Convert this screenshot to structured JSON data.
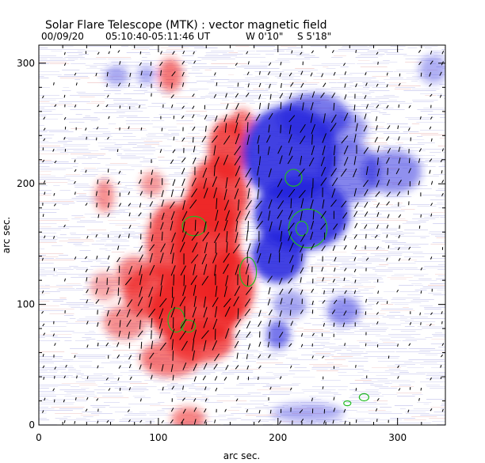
{
  "chart_data": {
    "type": "heatmap",
    "title": "Solar Flare Telescope (MTK) : vector magnetic field",
    "subtitle": {
      "date": "00/09/20",
      "time": "05:10:40-05:11:46 UT",
      "lon": "W 0'10\"",
      "lat": "S 5'18\""
    },
    "xlabel": "arc sec.",
    "ylabel": "arc sec.",
    "xlim": [
      0,
      340
    ],
    "ylim": [
      0,
      315
    ],
    "xticks": [
      {
        "v": 0,
        "label": "0"
      },
      {
        "v": 100,
        "label": "100"
      },
      {
        "v": 200,
        "label": "200"
      },
      {
        "v": 300,
        "label": "300"
      }
    ],
    "yticks": [
      {
        "v": 0,
        "label": "0"
      },
      {
        "v": 100,
        "label": "100"
      },
      {
        "v": 200,
        "label": "200"
      },
      {
        "v": 300,
        "label": "300"
      }
    ],
    "colors": {
      "positive": "#ee2222",
      "negative": "#2222dd",
      "contour": "#22bb22",
      "vector": "#000000"
    },
    "positive_regions": [
      {
        "cx": 140,
        "cy": 150,
        "rx": 28,
        "ry": 50,
        "a": 0.85
      },
      {
        "cx": 130,
        "cy": 95,
        "rx": 38,
        "ry": 30,
        "a": 0.85
      },
      {
        "cx": 150,
        "cy": 190,
        "rx": 25,
        "ry": 32,
        "a": 0.8
      },
      {
        "cx": 100,
        "cy": 110,
        "rx": 30,
        "ry": 22,
        "a": 0.75
      },
      {
        "cx": 112,
        "cy": 150,
        "rx": 22,
        "ry": 35,
        "a": 0.75
      },
      {
        "cx": 160,
        "cy": 115,
        "rx": 20,
        "ry": 30,
        "a": 0.85
      },
      {
        "cx": 80,
        "cy": 125,
        "rx": 15,
        "ry": 15,
        "a": 0.55
      },
      {
        "cx": 72,
        "cy": 85,
        "rx": 18,
        "ry": 14,
        "a": 0.5
      },
      {
        "cx": 110,
        "cy": 55,
        "rx": 25,
        "ry": 15,
        "a": 0.6
      },
      {
        "cx": 135,
        "cy": 70,
        "rx": 28,
        "ry": 18,
        "a": 0.75
      },
      {
        "cx": 158,
        "cy": 228,
        "rx": 16,
        "ry": 26,
        "a": 0.8
      },
      {
        "cx": 170,
        "cy": 250,
        "rx": 10,
        "ry": 12,
        "a": 0.6
      },
      {
        "cx": 55,
        "cy": 190,
        "rx": 8,
        "ry": 14,
        "a": 0.5
      },
      {
        "cx": 95,
        "cy": 200,
        "rx": 10,
        "ry": 10,
        "a": 0.45
      },
      {
        "cx": 110,
        "cy": 290,
        "rx": 10,
        "ry": 14,
        "a": 0.6
      },
      {
        "cx": 125,
        "cy": 5,
        "rx": 14,
        "ry": 10,
        "a": 0.55
      },
      {
        "cx": 55,
        "cy": 115,
        "rx": 12,
        "ry": 12,
        "a": 0.4
      }
    ],
    "negative_regions": [
      {
        "cx": 210,
        "cy": 225,
        "rx": 40,
        "ry": 40,
        "a": 0.85
      },
      {
        "cx": 220,
        "cy": 175,
        "rx": 40,
        "ry": 30,
        "a": 0.85
      },
      {
        "cx": 200,
        "cy": 140,
        "rx": 22,
        "ry": 22,
        "a": 0.85
      },
      {
        "cx": 230,
        "cy": 255,
        "rx": 30,
        "ry": 20,
        "a": 0.6
      },
      {
        "cx": 260,
        "cy": 210,
        "rx": 25,
        "ry": 25,
        "a": 0.55
      },
      {
        "cx": 295,
        "cy": 210,
        "rx": 25,
        "ry": 18,
        "a": 0.5
      },
      {
        "cx": 255,
        "cy": 245,
        "rx": 20,
        "ry": 15,
        "a": 0.45
      },
      {
        "cx": 255,
        "cy": 95,
        "rx": 14,
        "ry": 12,
        "a": 0.5
      },
      {
        "cx": 200,
        "cy": 75,
        "rx": 10,
        "ry": 12,
        "a": 0.6
      },
      {
        "cx": 210,
        "cy": 100,
        "rx": 14,
        "ry": 12,
        "a": 0.4
      },
      {
        "cx": 65,
        "cy": 290,
        "rx": 10,
        "ry": 8,
        "a": 0.4
      },
      {
        "cx": 90,
        "cy": 290,
        "rx": 8,
        "ry": 8,
        "a": 0.35
      },
      {
        "cx": 330,
        "cy": 295,
        "rx": 12,
        "ry": 12,
        "a": 0.35
      },
      {
        "cx": 225,
        "cy": 10,
        "rx": 30,
        "ry": 8,
        "a": 0.35
      }
    ],
    "contours": [
      {
        "cx": 213,
        "cy": 205,
        "rx": 7,
        "ry": 7
      },
      {
        "cx": 225,
        "cy": 163,
        "rx": 16,
        "ry": 16
      },
      {
        "cx": 220,
        "cy": 163,
        "rx": 5,
        "ry": 6
      },
      {
        "cx": 130,
        "cy": 165,
        "rx": 10,
        "ry": 8
      },
      {
        "cx": 115,
        "cy": 87,
        "rx": 7,
        "ry": 10
      },
      {
        "cx": 125,
        "cy": 82,
        "rx": 6,
        "ry": 5
      },
      {
        "cx": 175,
        "cy": 127,
        "rx": 7,
        "ry": 12
      },
      {
        "cx": 272,
        "cy": 23,
        "rx": 4,
        "ry": 3
      },
      {
        "cx": 258,
        "cy": 18,
        "rx": 3,
        "ry": 2
      }
    ],
    "vector_grid_step": 9,
    "vector_length": 6
  }
}
